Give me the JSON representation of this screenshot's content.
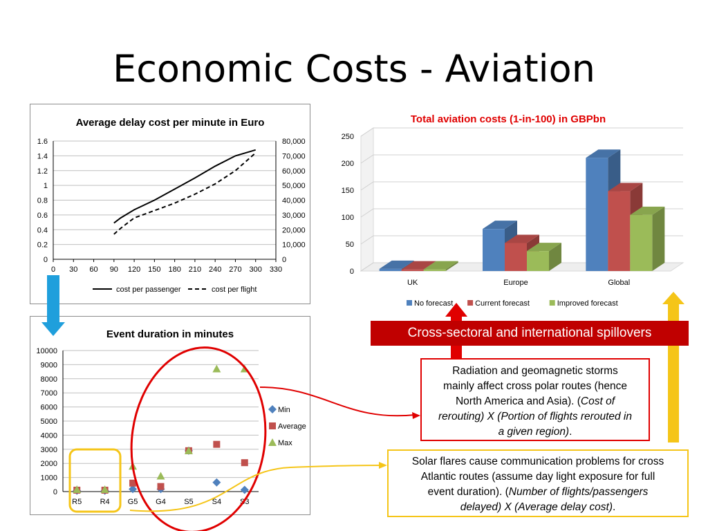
{
  "slide": {
    "title": "Economic Costs - Aviation"
  },
  "chart_data": [
    {
      "type": "line",
      "title": "Average delay cost per minute in Euro",
      "x": [
        90,
        100,
        120,
        150,
        180,
        210,
        240,
        270,
        300
      ],
      "xticks": [
        "0",
        "30",
        "60",
        "90",
        "120",
        "150",
        "180",
        "210",
        "240",
        "270",
        "300",
        "330"
      ],
      "xlim": [
        0,
        330
      ],
      "ylim": [
        0,
        1.6
      ],
      "yticks": [
        "0",
        "0.2",
        "0.4",
        "0.6",
        "0.8",
        "1",
        "1.2",
        "1.4",
        "1.6"
      ],
      "y2lim": [
        0,
        80000
      ],
      "y2ticks": [
        "0",
        "10,000",
        "20,000",
        "30,000",
        "40,000",
        "50,000",
        "60,000",
        "70,000",
        "80,000"
      ],
      "series": [
        {
          "name": "cost per passenger",
          "axis": "left",
          "style": "solid",
          "values": [
            0.49,
            0.56,
            0.67,
            0.8,
            0.95,
            1.1,
            1.26,
            1.4,
            1.48
          ]
        },
        {
          "name": "cost per flight",
          "axis": "right",
          "style": "dashed",
          "values": [
            17000,
            21000,
            28000,
            33000,
            38000,
            44000,
            51000,
            60000,
            72000
          ]
        }
      ],
      "grid": true,
      "legend_position": "bottom"
    },
    {
      "type": "scatter",
      "title": "Event duration in minutes",
      "categories": [
        "R5",
        "R4",
        "G5",
        "G4",
        "S5",
        "S4",
        "S3"
      ],
      "ylim": [
        0,
        10000
      ],
      "yticks": [
        "0",
        "1000",
        "2000",
        "3000",
        "4000",
        "5000",
        "6000",
        "7000",
        "8000",
        "9000",
        "10000"
      ],
      "series": [
        {
          "name": "Min",
          "marker": "diamond",
          "color": "#4f81bd",
          "values": [
            60,
            60,
            180,
            180,
            2900,
            650,
            120
          ]
        },
        {
          "name": "Average",
          "marker": "square",
          "color": "#c0504d",
          "values": [
            100,
            100,
            600,
            360,
            2900,
            3350,
            2050
          ]
        },
        {
          "name": "Max",
          "marker": "triangle",
          "color": "#9bbb59",
          "values": [
            150,
            150,
            1800,
            1100,
            2900,
            8700,
            8700
          ]
        }
      ],
      "grid": true,
      "legend_position": "right"
    },
    {
      "type": "bar",
      "title": "Total aviation costs (1-in-100) in GBPbn",
      "categories": [
        "UK",
        "Europe",
        "Global"
      ],
      "ylim": [
        0,
        250
      ],
      "yticks": [
        "0",
        "50",
        "100",
        "150",
        "200",
        "250"
      ],
      "series": [
        {
          "name": "No forecast",
          "color": "#4f81bd",
          "values": [
            4,
            78,
            210
          ]
        },
        {
          "name": "Current forecast",
          "color": "#c0504d",
          "values": [
            3,
            52,
            148
          ]
        },
        {
          "name": "Improved forecast",
          "color": "#9bbb59",
          "values": [
            3,
            37,
            104
          ]
        }
      ],
      "grid": true,
      "legend_position": "bottom"
    }
  ],
  "banner": {
    "text": "Cross-sectoral and international spillovers",
    "color": "#c00000"
  },
  "notes": {
    "radiation": {
      "line1": "Radiation and geomagnetic storms",
      "line2": "mainly affect cross polar routes (hence",
      "line3_plain": "North America and Asia). (",
      "line3_italic": "Cost of",
      "line4": "rerouting) X (Portion of flights rerouted in",
      "line5": "a given region)",
      "line5_end": "."
    },
    "solar": {
      "line1": "Solar flares cause communication problems for cross",
      "line2": "Atlantic routes (assume day light exposure for full",
      "line3_plain": "event duration). (",
      "line3_italic": "Number of flights/passengers",
      "line4": "delayed) X (Average delay cost)",
      "line4_end": "."
    }
  },
  "colors": {
    "arrow_blue": "#1f9fdc",
    "arrow_red": "#e00000",
    "arrow_yellow": "#f5c518"
  }
}
